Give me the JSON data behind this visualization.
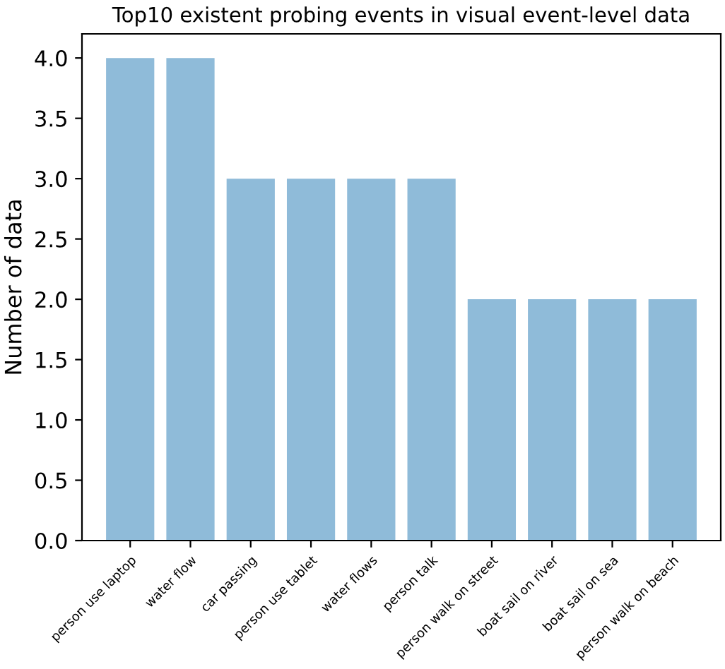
{
  "chart_data": {
    "type": "bar",
    "title": "Top10 existent probing events in visual event-level data",
    "ylabel": "Number of data",
    "categories": [
      "person use laptop",
      "water flow",
      "car passing",
      "person use tablet",
      "water flows",
      "person talk",
      "person walk on street",
      "boat sail on river",
      "boat sail on sea",
      "person walk on beach"
    ],
    "values": [
      4,
      4,
      3,
      3,
      3,
      3,
      2,
      2,
      2,
      2
    ],
    "color": "#8fbbd9",
    "ylim": [
      0,
      4.2
    ],
    "yticks": [
      {
        "value": 0,
        "label": "0.0"
      },
      0.5,
      {
        "value": 1,
        "label": "1.0"
      },
      1.5,
      {
        "value": 2,
        "label": "2.0"
      },
      2.5,
      {
        "value": 3,
        "label": "3.0"
      },
      3.5,
      {
        "value": 4,
        "label": "4.0"
      }
    ],
    "grid": false
  }
}
